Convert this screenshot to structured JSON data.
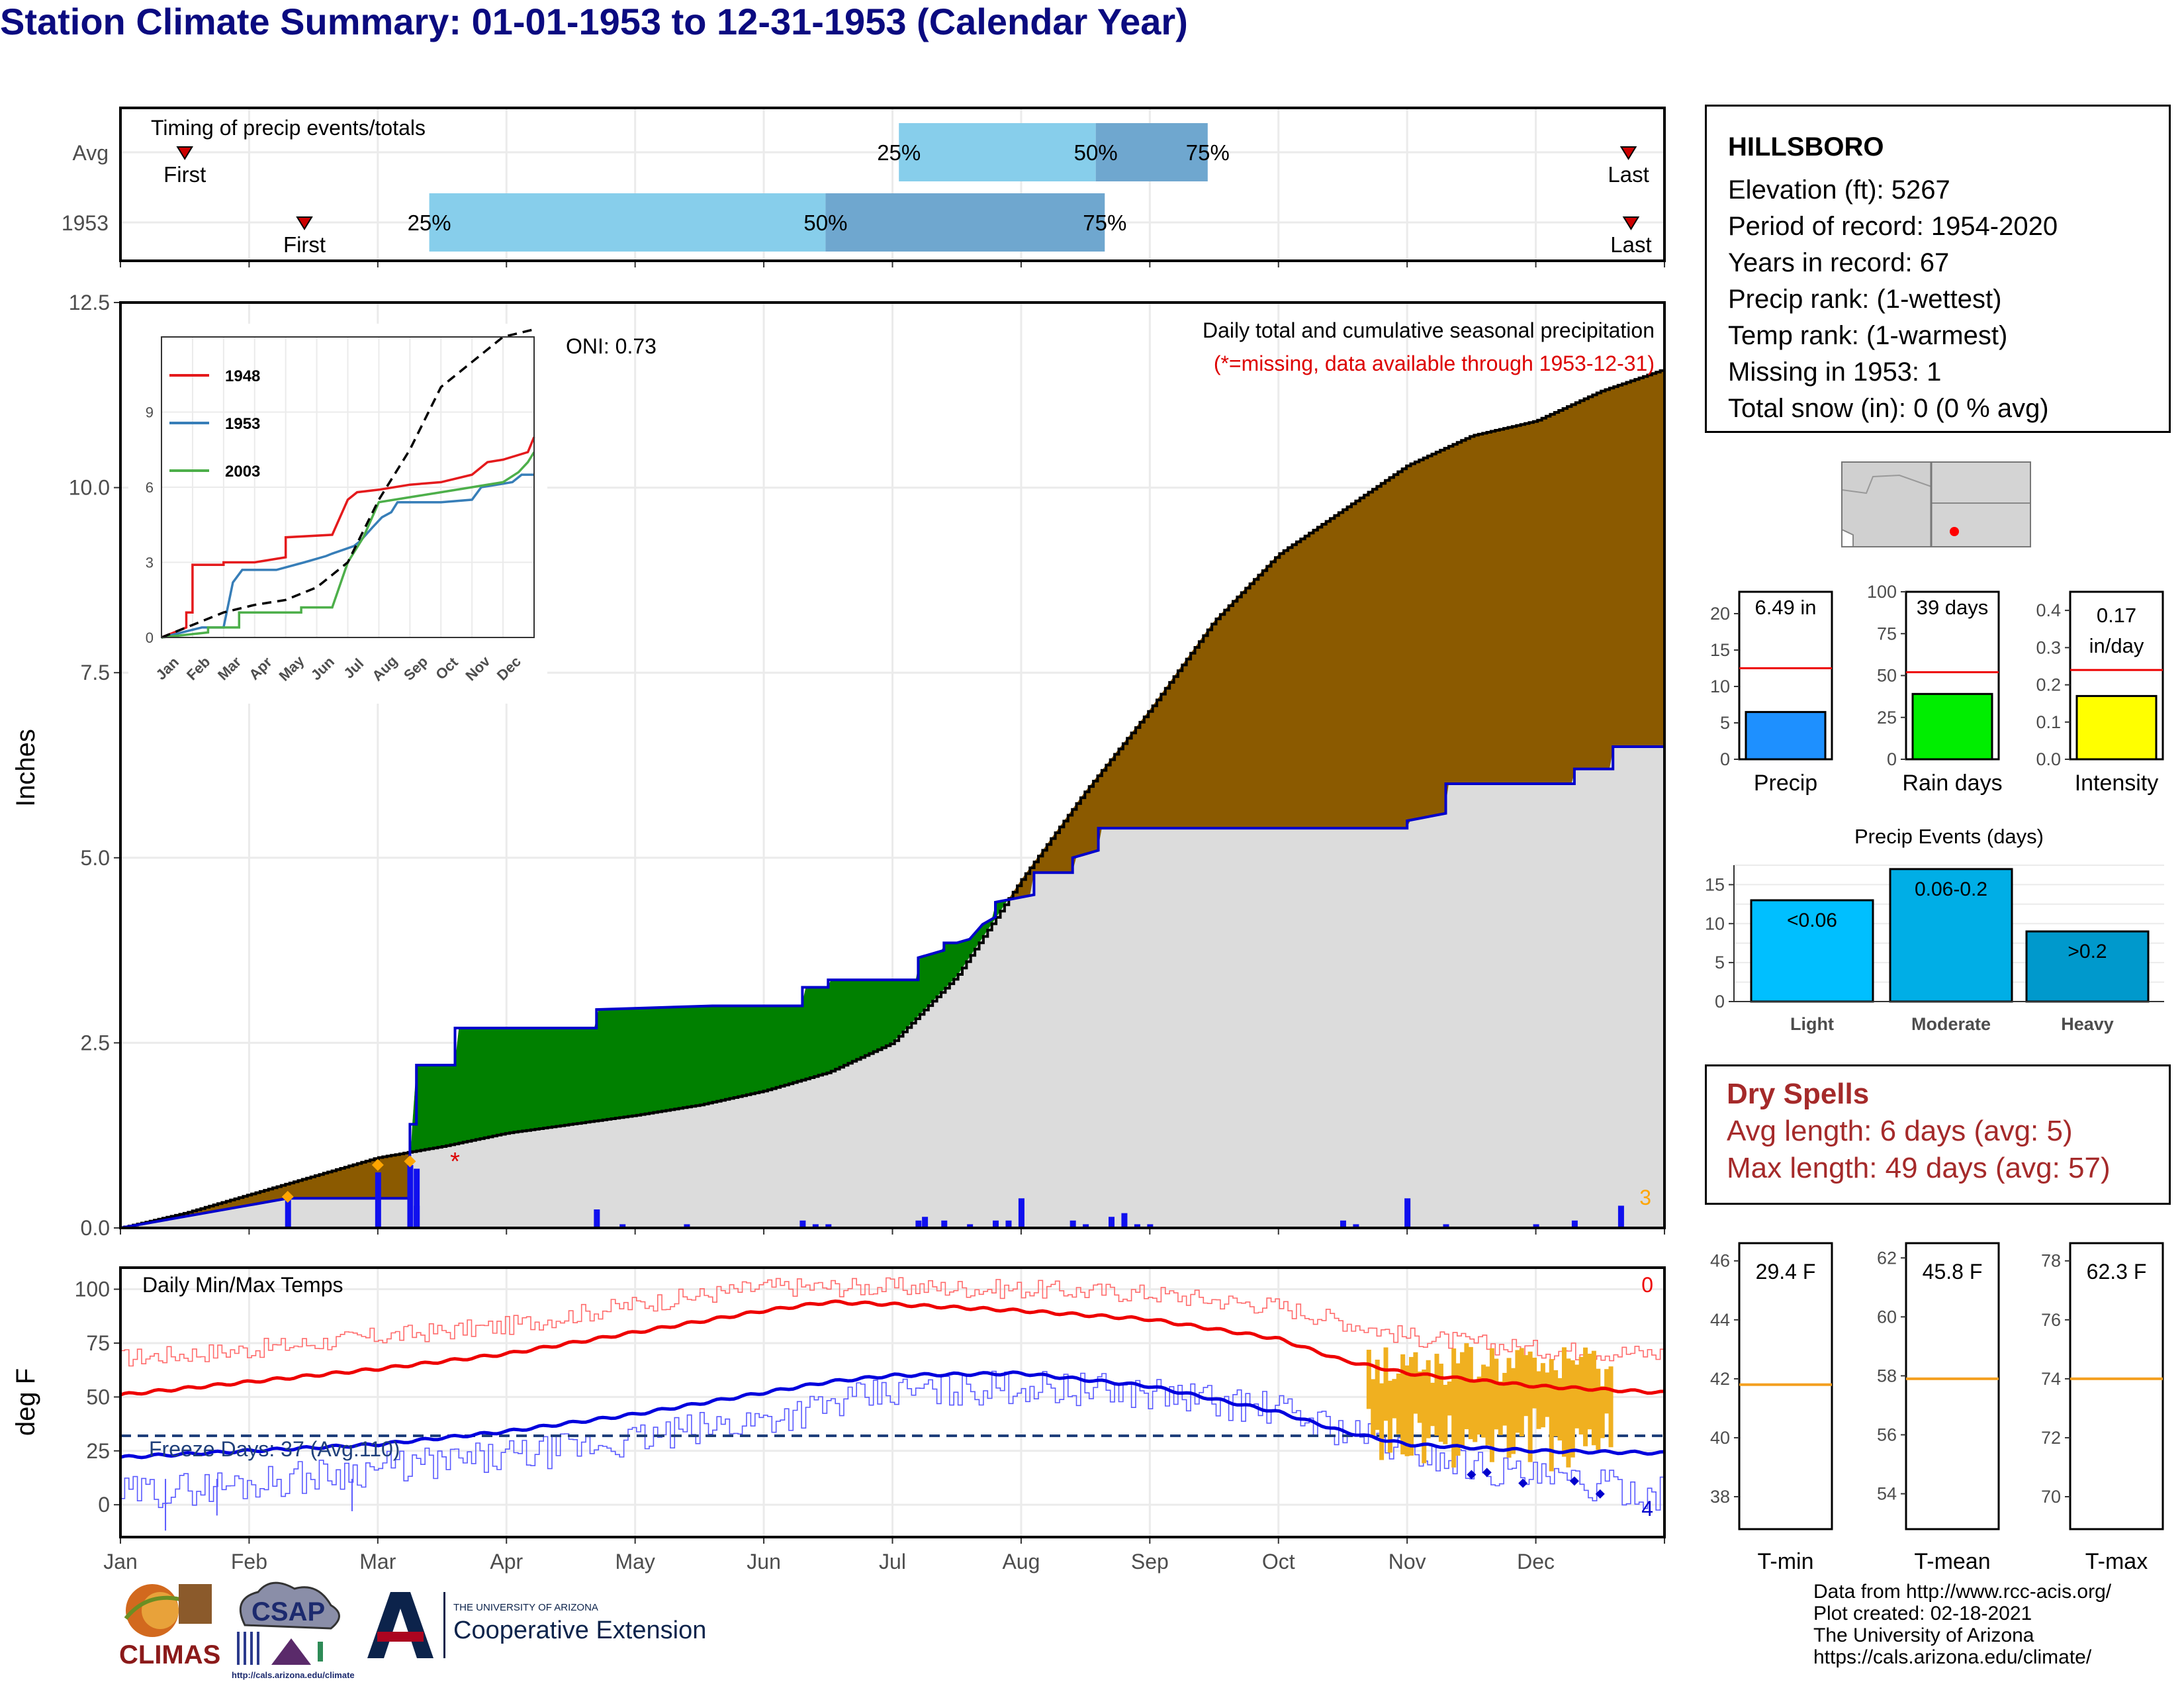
{
  "title": "Station Climate Summary: 01-01-1953 to 12-31-1953 (Calendar Year)",
  "station": {
    "name": "HILLSBORO",
    "lines": [
      "Elevation (ft): 5267",
      "Period of record: 1954-2020",
      "Years in record: 67",
      "Precip rank:  (1-wettest)",
      "Temp rank:  (1-warmest)",
      "Missing in 1953: 1",
      "Total snow (in): 0 (0 % avg)"
    ]
  },
  "timing": {
    "title": "Timing of precip events/totals",
    "rows": [
      {
        "label": "Avg",
        "first": 0.5,
        "last": 11.72,
        "p25": 6.05,
        "p50": 7.58,
        "p75": 8.45
      },
      {
        "label": "1953",
        "first": 1.43,
        "last": 11.74,
        "p25": 2.4,
        "p50": 5.48,
        "p75": 7.65
      }
    ],
    "first_label": "First",
    "last_label": "Last",
    "p25_label": "25%",
    "p50_label": "50%",
    "p75_label": "75%"
  },
  "precip_panel": {
    "title": "Daily total and cumulative seasonal precipitation",
    "missing_note": "(*=missing, data available through 1953-12-31)",
    "oni": "ONI: 0.73",
    "ylabel": "Inches",
    "yticks": [
      "0.0",
      "2.5",
      "5.0",
      "7.5",
      "10.0",
      "12.5"
    ],
    "missing_marker": "*",
    "count_label": "3",
    "colors": {
      "above": "#8b5a00",
      "below": "#008000",
      "fill": "#dcdcdc",
      "obs": "#0000cc"
    }
  },
  "temp_panel": {
    "title": "Daily Min/Max Temps",
    "ylabel": "deg F",
    "yticks": [
      "0",
      "25",
      "50",
      "75",
      "100"
    ],
    "freeze_label": "Freeze Days: 37 (Avg:110)",
    "max_count": "0",
    "min_count": "4"
  },
  "months": [
    "Jan",
    "Feb",
    "Mar",
    "Apr",
    "May",
    "Jun",
    "Jul",
    "Aug",
    "Sep",
    "Oct",
    "Nov",
    "Dec"
  ],
  "chart_data": [
    {
      "type": "line",
      "title": "Daily total and cumulative seasonal precipitation",
      "ylabel": "Inches",
      "ylim": [
        0,
        12.5
      ],
      "x_unit": "month of year (0=Jan 1, 12=Dec 31)",
      "series": [
        {
          "name": "1953",
          "x": [
            0,
            1.3,
            1.3,
            2.0,
            2.0,
            2.25,
            2.25,
            2.3,
            2.3,
            2.6,
            2.6,
            3.0,
            3.7,
            3.7,
            4.6,
            5.3,
            5.3,
            5.5,
            5.5,
            6.0,
            6.2,
            6.2,
            6.4,
            6.4,
            6.5,
            6.6,
            6.7,
            6.8,
            6.8,
            7.1,
            7.1,
            7.4,
            7.4,
            7.6,
            7.6,
            7.8,
            8.0,
            8.5,
            9.0,
            9.5,
            10.0,
            10.0,
            10.3,
            10.3,
            11.3,
            11.3,
            11.6,
            11.6,
            12.0
          ],
          "values": [
            0.0,
            0.4,
            0.4,
            0.4,
            0.4,
            0.4,
            1.4,
            1.4,
            2.2,
            2.2,
            2.7,
            2.7,
            2.7,
            2.95,
            3.0,
            3.0,
            3.25,
            3.25,
            3.35,
            3.35,
            3.35,
            3.65,
            3.75,
            3.85,
            3.85,
            3.9,
            4.1,
            4.2,
            4.4,
            4.5,
            4.8,
            4.8,
            5.0,
            5.1,
            5.4,
            5.4,
            5.4,
            5.4,
            5.4,
            5.4,
            5.4,
            5.5,
            5.6,
            6.0,
            6.0,
            6.2,
            6.2,
            6.5,
            6.5
          ]
        },
        {
          "name": "Avg",
          "x": [
            0,
            0.5,
            1,
            1.5,
            2,
            2.5,
            3,
            3.5,
            4,
            4.5,
            5,
            5.5,
            6,
            6.5,
            7,
            7.5,
            8,
            8.5,
            9,
            9.5,
            10,
            10.5,
            11,
            11.5,
            12
          ],
          "values": [
            0,
            0.2,
            0.45,
            0.7,
            0.95,
            1.1,
            1.28,
            1.4,
            1.52,
            1.66,
            1.85,
            2.1,
            2.5,
            3.4,
            4.7,
            5.9,
            7.0,
            8.2,
            9.1,
            9.7,
            10.3,
            10.7,
            10.9,
            11.3,
            11.6
          ]
        }
      ],
      "daily_bars": {
        "x": [
          1.3,
          2.0,
          2.25,
          2.3,
          2.3,
          3.7,
          3.9,
          4.4,
          5.3,
          5.4,
          5.5,
          6.2,
          6.25,
          6.4,
          6.6,
          6.8,
          6.9,
          7.0,
          7.4,
          7.5,
          7.7,
          7.8,
          7.9,
          8.0,
          9.5,
          9.6,
          10.0,
          10.3,
          11.0,
          11.3,
          11.66
        ],
        "values": [
          0.4,
          0.75,
          0.85,
          0.8,
          0.3,
          0.25,
          0.05,
          0.05,
          0.1,
          0.05,
          0.05,
          0.1,
          0.15,
          0.1,
          0.05,
          0.1,
          0.1,
          0.4,
          0.1,
          0.05,
          0.15,
          0.2,
          0.05,
          0.05,
          0.1,
          0.05,
          0.4,
          0.05,
          0.05,
          0.1,
          0.3
        ]
      }
    },
    {
      "type": "line",
      "title": "",
      "xlabel": "",
      "ylabel": "",
      "categories": [
        "Jan",
        "Feb",
        "Mar",
        "Apr",
        "May",
        "Jun",
        "Jul",
        "Aug",
        "Sep",
        "Oct",
        "Nov",
        "Dec"
      ],
      "ylim": [
        0,
        12
      ],
      "yticks": [
        "0",
        "3",
        "6",
        "9"
      ],
      "series": [
        {
          "name": "1948",
          "x": [
            0,
            0.8,
            0.8,
            1.0,
            1.0,
            2.0,
            2.0,
            3.0,
            4.0,
            4.0,
            5.5,
            6.0,
            6.3,
            7.0,
            8.0,
            9.0,
            10.0,
            10.5,
            11.0,
            11.8,
            12.0
          ],
          "values": [
            0,
            0.4,
            1.0,
            1.0,
            2.9,
            2.9,
            3.0,
            3.0,
            3.2,
            4.0,
            4.1,
            5.5,
            5.8,
            5.9,
            6.1,
            6.2,
            6.5,
            7.0,
            7.1,
            7.4,
            8.0
          ]
        },
        {
          "name": "1953",
          "x": [
            0,
            1.3,
            2.0,
            2.3,
            2.6,
            3.7,
            4.6,
            5.3,
            5.5,
            6.2,
            6.4,
            6.8,
            7.1,
            7.4,
            7.6,
            8.0,
            9.0,
            10.0,
            10.3,
            11.3,
            11.6,
            12.0
          ],
          "values": [
            0,
            0.4,
            0.4,
            2.2,
            2.7,
            2.7,
            3.0,
            3.25,
            3.35,
            3.65,
            3.85,
            4.4,
            4.8,
            5.0,
            5.4,
            5.4,
            5.4,
            5.5,
            6.0,
            6.2,
            6.5,
            6.5
          ]
        },
        {
          "name": "2003",
          "x": [
            0,
            1.5,
            1.5,
            2.5,
            2.5,
            4.5,
            4.5,
            5.5,
            6.0,
            6.5,
            7.0,
            8.0,
            9.0,
            10.0,
            11.0,
            11.5,
            11.8,
            12.0
          ],
          "values": [
            0,
            0.2,
            0.4,
            0.4,
            1.0,
            1.0,
            1.2,
            1.2,
            3.0,
            4.0,
            5.4,
            5.6,
            5.8,
            6.0,
            6.2,
            6.6,
            7.0,
            7.4
          ]
        },
        {
          "name": "Avg",
          "x": [
            0,
            1,
            2,
            3,
            4,
            5,
            6,
            7,
            8,
            9,
            10,
            11,
            12
          ],
          "values": [
            0,
            0.5,
            1.0,
            1.3,
            1.5,
            2.0,
            3.0,
            5.5,
            7.5,
            10.0,
            11.0,
            12.0,
            12.5
          ]
        }
      ]
    },
    {
      "type": "line",
      "title": "Daily Min/Max Temps",
      "ylabel": "deg F",
      "ylim": [
        -15,
        110
      ],
      "x_unit": "month of year (0=Jan 1, 12=Dec 31)",
      "freeze_line": 32,
      "series": [
        {
          "name": "Avg max",
          "x": [
            0,
            1,
            2,
            3,
            4,
            5,
            5.5,
            6,
            7,
            8,
            9,
            9.5,
            10,
            11,
            12
          ],
          "values": [
            51,
            57,
            63,
            70,
            80,
            90,
            94,
            93,
            90,
            86,
            77,
            67,
            61,
            55,
            52
          ]
        },
        {
          "name": "Avg min",
          "x": [
            0,
            1,
            2,
            3,
            4,
            5,
            5.5,
            6,
            7,
            8,
            9,
            9.5,
            10,
            11,
            12
          ],
          "values": [
            22,
            25,
            28,
            34,
            42,
            52,
            57,
            60,
            61,
            55,
            43,
            34,
            28,
            25,
            24
          ]
        },
        {
          "name": "1953 max",
          "x": [
            0,
            1,
            2,
            3,
            4,
            5,
            6,
            7,
            8,
            9,
            10,
            11,
            12
          ],
          "values": [
            68,
            72,
            78,
            83,
            93,
            101,
            101,
            100,
            98,
            92,
            78,
            72,
            70
          ]
        },
        {
          "name": "1953 min",
          "x": [
            0,
            1,
            2,
            3,
            4,
            5,
            6,
            7,
            8,
            9,
            10,
            11,
            12
          ],
          "values": [
            5,
            10,
            17,
            22,
            30,
            40,
            52,
            55,
            52,
            44,
            25,
            12,
            5
          ]
        }
      ],
      "missing_span": {
        "x": [
          9.7,
          11.6
        ],
        "low": 8,
        "high": 75
      }
    },
    {
      "type": "bar",
      "title": "",
      "categories": [
        "Precip",
        "Rain days",
        "Intensity"
      ],
      "series": [
        {
          "name": "1953",
          "values": [
            6.49,
            39,
            0.17
          ]
        },
        {
          "name": "Avg",
          "values": [
            12.5,
            52,
            0.24
          ]
        }
      ],
      "labels": [
        "6.49 in",
        "39 days",
        "0.17 in/day"
      ],
      "ylims": [
        [
          0,
          23
        ],
        [
          0,
          100
        ],
        [
          0,
          0.45
        ]
      ],
      "yticks": [
        [
          "0",
          "5",
          "10",
          "15",
          "20"
        ],
        [
          "0",
          "25",
          "50",
          "75",
          "100"
        ],
        [
          "0.0",
          "0.1",
          "0.2",
          "0.3",
          "0.4"
        ]
      ],
      "colors": [
        "#1e90ff",
        "#00ee00",
        "#ffff00"
      ]
    },
    {
      "type": "bar",
      "title": "Precip Events (days)",
      "categories": [
        "Light",
        "Moderate",
        "Heavy"
      ],
      "values": [
        13,
        17,
        9
      ],
      "labels": [
        "<0.06",
        "0.06-0.2",
        ">0.2"
      ],
      "ylim": [
        0,
        17.5
      ],
      "yticks": [
        "0",
        "5",
        "10",
        "15"
      ],
      "colors": [
        "#00bfff",
        "#00aee6",
        "#0099cc"
      ]
    },
    {
      "type": "bar",
      "title": "",
      "categories": [
        "T-min",
        "T-mean",
        "T-max"
      ],
      "values": [
        29.4,
        45.8,
        62.3
      ],
      "labels": [
        "29.4 F",
        "45.8 F",
        "62.3 F"
      ],
      "avg": [
        41.8,
        57.9,
        74.0
      ],
      "ylims": [
        [
          36.9,
          46.6
        ],
        [
          52.8,
          62.5
        ],
        [
          68.9,
          78.6
        ]
      ],
      "yticks": [
        [
          "38",
          "40",
          "42",
          "44",
          "46"
        ],
        [
          "54",
          "56",
          "58",
          "60",
          "62"
        ],
        [
          "70",
          "72",
          "74",
          "76",
          "78"
        ]
      ]
    }
  ],
  "dry_spells": {
    "title": "Dry Spells",
    "avg_length": "Avg length: 6 days (avg: 5)",
    "max_length": "Max length: 49 days (avg: 57)"
  },
  "credits": [
    "Data from http://www.rcc-acis.org/",
    "Plot created: 02-18-2021",
    "The University of Arizona",
    "https://cals.arizona.edu/climate/"
  ],
  "logos": {
    "climas": "CLIMAS",
    "csap": "CSAP",
    "csap_url": "http://cals.arizona.edu/climate",
    "ua_small": "THE UNIVERSITY OF ARIZONA",
    "ua_ext": "Cooperative Extension"
  }
}
